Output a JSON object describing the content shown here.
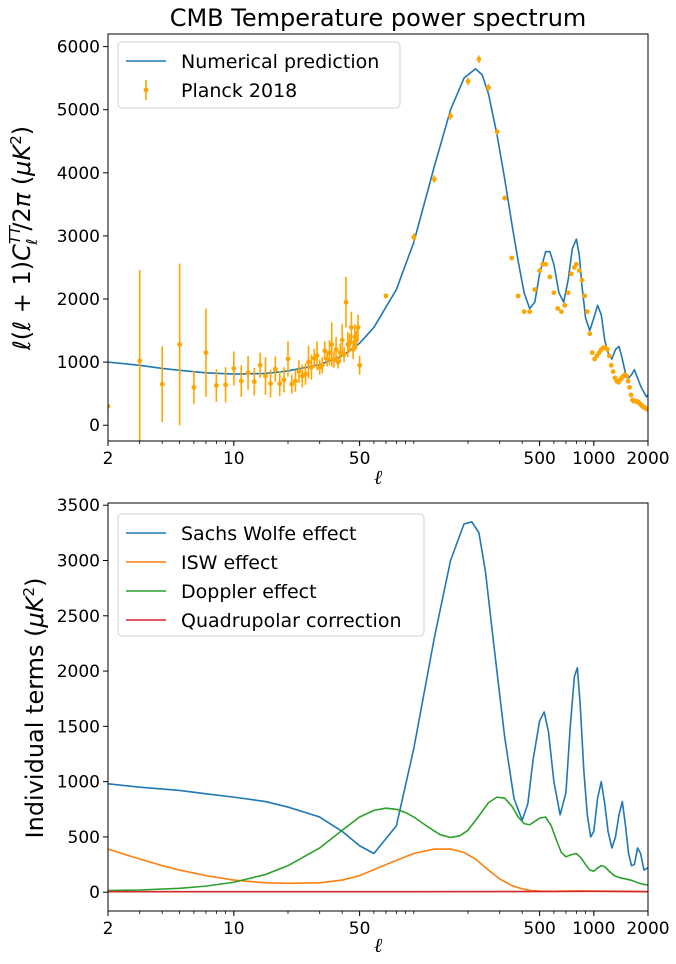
{
  "chart_data": [
    {
      "type": "line",
      "title": "CMB Temperature power spectrum",
      "xlabel": "ℓ",
      "ylabel": "ℓ(ℓ + 1)CℓTT/2π (μK²)",
      "xscale": "log",
      "xlim": [
        2,
        2000
      ],
      "ylim": [
        -250,
        6200
      ],
      "xticks": [
        2,
        10,
        50,
        500,
        1000,
        2000
      ],
      "xtick_labels": [
        "2",
        "10",
        "50",
        "500",
        "1000",
        "2000"
      ],
      "yticks": [
        0,
        1000,
        2000,
        3000,
        4000,
        5000,
        6000
      ],
      "ytick_labels": [
        "0",
        "1000",
        "2000",
        "3000",
        "4000",
        "5000",
        "6000"
      ],
      "legend_position": "top-left",
      "series": [
        {
          "name": "Numerical prediction",
          "kind": "line",
          "color": "#1f77b4",
          "x": [
            2,
            3,
            4,
            5,
            7,
            10,
            15,
            20,
            30,
            40,
            50,
            60,
            80,
            100,
            130,
            160,
            190,
            220,
            240,
            260,
            290,
            320,
            350,
            380,
            410,
            440,
            470,
            500,
            540,
            570,
            600,
            640,
            680,
            720,
            760,
            800,
            830,
            860,
            900,
            950,
            1000,
            1050,
            1100,
            1150,
            1200,
            1260,
            1320,
            1380,
            1440,
            1500,
            1560,
            1620,
            1680,
            1750,
            1820,
            1900,
            1960,
            2000
          ],
          "y": [
            1000,
            950,
            900,
            870,
            830,
            810,
            820,
            860,
            960,
            1100,
            1300,
            1550,
            2150,
            2900,
            4100,
            5000,
            5500,
            5650,
            5550,
            5250,
            4600,
            3900,
            3200,
            2600,
            2100,
            1850,
            1950,
            2400,
            2750,
            2750,
            2550,
            2100,
            1950,
            2300,
            2800,
            2950,
            2700,
            2200,
            1700,
            1500,
            1700,
            1900,
            1750,
            1350,
            1150,
            1050,
            1200,
            1250,
            1050,
            820,
            750,
            800,
            880,
            750,
            620,
            520,
            450,
            480
          ]
        },
        {
          "name": "Planck 2018",
          "kind": "errorbar",
          "color": "#ffa500",
          "x": [
            2,
            3,
            4,
            5,
            6,
            7,
            8,
            9,
            10,
            11,
            12,
            13,
            14,
            15,
            16,
            17,
            18,
            19,
            20,
            21,
            22,
            23,
            24,
            25,
            26,
            27,
            28,
            29,
            30,
            31,
            32,
            33,
            34,
            35,
            36,
            37,
            38,
            39,
            40,
            41,
            42,
            43,
            44,
            45,
            46,
            47,
            48,
            49,
            50,
            70,
            100,
            130,
            160,
            200,
            230,
            260,
            290,
            320,
            350,
            380,
            410,
            440,
            470,
            500,
            520,
            540,
            570,
            600,
            630,
            660,
            690,
            720,
            750,
            780,
            800,
            830,
            860,
            890,
            920,
            950,
            980,
            1010,
            1040,
            1070,
            1100,
            1130,
            1160,
            1190,
            1220,
            1250,
            1280,
            1310,
            1340,
            1370,
            1400,
            1430,
            1460,
            1490,
            1520,
            1550,
            1580,
            1610,
            1640,
            1670,
            1700,
            1730,
            1760,
            1790,
            1820,
            1850,
            1880,
            1910,
            1940,
            1970,
            2000
          ],
          "y": [
            300,
            1020,
            650,
            1280,
            600,
            1150,
            630,
            640,
            900,
            700,
            830,
            690,
            950,
            780,
            660,
            890,
            660,
            720,
            1050,
            650,
            700,
            850,
            780,
            810,
            1000,
            920,
            1060,
            1100,
            920,
            950,
            1180,
            1050,
            1150,
            1280,
            1040,
            1200,
            1000,
            1150,
            1350,
            1120,
            1950,
            1280,
            1300,
            1550,
            1200,
            1400,
            1350,
            1550,
            950,
            2050,
            2980,
            3900,
            4900,
            5450,
            5800,
            5350,
            4650,
            3600,
            2650,
            2050,
            1800,
            1800,
            2150,
            2450,
            2550,
            2550,
            2350,
            2100,
            1850,
            1800,
            1900,
            2100,
            2400,
            2500,
            2550,
            2450,
            2300,
            2050,
            1800,
            1450,
            1150,
            1050,
            1100,
            1150,
            1200,
            1230,
            1230,
            1200,
            1100,
            950,
            850,
            750,
            700,
            680,
            720,
            750,
            780,
            800,
            780,
            700,
            600,
            480,
            400,
            380,
            380,
            380,
            370,
            350,
            330,
            310,
            290,
            280,
            270,
            260,
            250
          ],
          "yerr": [
            25,
            1440,
            600,
            1280,
            260,
            700,
            260,
            280,
            270,
            250,
            270,
            220,
            200,
            300,
            220,
            200,
            200,
            200,
            280,
            150,
            170,
            180,
            180,
            170,
            260,
            200,
            150,
            230,
            120,
            130,
            150,
            120,
            200,
            350,
            130,
            200,
            100,
            150,
            250,
            120,
            400,
            200,
            150,
            250,
            150,
            200,
            150,
            200,
            150,
            40,
            60,
            60,
            60,
            60,
            60,
            60,
            50,
            40,
            30,
            30,
            25,
            25,
            25,
            25,
            25,
            25,
            25,
            25,
            25,
            25,
            25,
            25,
            25,
            25,
            25,
            25,
            20,
            20,
            20,
            20,
            20,
            20,
            20,
            20,
            20,
            20,
            20,
            20,
            20,
            20,
            15,
            15,
            15,
            15,
            15,
            15,
            15,
            15,
            15,
            15,
            15,
            15,
            15,
            15,
            15,
            15,
            15,
            15,
            15,
            15,
            15,
            15,
            15,
            15,
            15
          ]
        }
      ]
    },
    {
      "type": "line",
      "title": "",
      "xlabel": "ℓ",
      "ylabel": "Individual terms (μK²)",
      "xscale": "log",
      "xlim": [
        2,
        2000
      ],
      "ylim": [
        -170,
        3520
      ],
      "xticks": [
        2,
        10,
        50,
        500,
        1000,
        2000
      ],
      "xtick_labels": [
        "2",
        "10",
        "50",
        "500",
        "1000",
        "2000"
      ],
      "yticks": [
        0,
        500,
        1000,
        1500,
        2000,
        2500,
        3000,
        3500
      ],
      "ytick_labels": [
        "0",
        "500",
        "1000",
        "1500",
        "2000",
        "2500",
        "3000",
        "3500"
      ],
      "legend_position": "top-left",
      "series": [
        {
          "name": "Sachs Wolfe effect",
          "color": "#1f77b4",
          "x": [
            2,
            3,
            5,
            7,
            10,
            15,
            20,
            30,
            40,
            50,
            60,
            80,
            100,
            130,
            160,
            190,
            210,
            230,
            250,
            280,
            320,
            360,
            400,
            430,
            460,
            500,
            530,
            560,
            600,
            650,
            700,
            740,
            780,
            810,
            840,
            880,
            920,
            960,
            1000,
            1050,
            1100,
            1150,
            1200,
            1260,
            1320,
            1380,
            1440,
            1500,
            1560,
            1620,
            1680,
            1750,
            1820,
            1900,
            2000
          ],
          "y": [
            980,
            950,
            920,
            890,
            860,
            820,
            770,
            680,
            550,
            420,
            350,
            600,
            1300,
            2300,
            3000,
            3330,
            3350,
            3250,
            2900,
            2200,
            1400,
            850,
            650,
            800,
            1200,
            1550,
            1630,
            1450,
            1000,
            700,
            900,
            1500,
            1950,
            2030,
            1700,
            1100,
            700,
            500,
            550,
            850,
            1000,
            800,
            550,
            400,
            500,
            700,
            820,
            600,
            350,
            240,
            250,
            400,
            350,
            200,
            220
          ]
        },
        {
          "name": "ISW effect",
          "color": "#ff7f0e",
          "x": [
            2,
            3,
            4,
            5,
            7,
            10,
            15,
            20,
            30,
            40,
            50,
            70,
            100,
            130,
            160,
            190,
            220,
            260,
            300,
            350,
            400,
            450,
            500,
            600,
            700,
            800,
            1000,
            1500,
            2000
          ],
          "y": [
            390,
            300,
            240,
            200,
            150,
            110,
            85,
            80,
            85,
            110,
            150,
            250,
            350,
            390,
            390,
            360,
            300,
            200,
            120,
            60,
            30,
            15,
            10,
            8,
            10,
            12,
            10,
            8,
            5
          ]
        },
        {
          "name": "Doppler effect",
          "color": "#2ca02c",
          "x": [
            2,
            3,
            5,
            7,
            10,
            15,
            20,
            30,
            40,
            50,
            60,
            70,
            80,
            90,
            100,
            120,
            140,
            160,
            180,
            200,
            230,
            260,
            290,
            320,
            350,
            380,
            410,
            440,
            470,
            500,
            540,
            580,
            620,
            660,
            700,
            750,
            800,
            850,
            900,
            950,
            1000,
            1050,
            1100,
            1150,
            1200,
            1300,
            1400,
            1500,
            1600,
            1700,
            1800,
            1900,
            2000
          ],
          "y": [
            15,
            20,
            35,
            55,
            90,
            160,
            240,
            400,
            560,
            680,
            740,
            760,
            750,
            720,
            680,
            590,
            520,
            495,
            510,
            560,
            690,
            810,
            860,
            850,
            780,
            680,
            620,
            610,
            640,
            670,
            680,
            600,
            470,
            360,
            320,
            340,
            350,
            310,
            250,
            200,
            190,
            220,
            240,
            230,
            200,
            150,
            130,
            120,
            110,
            95,
            80,
            70,
            65
          ]
        },
        {
          "name": "Quadrupolar correction",
          "color": "#d62728",
          "x": [
            2,
            10,
            50,
            100,
            500,
            1000,
            2000
          ],
          "y": [
            5,
            5,
            5,
            5,
            6,
            8,
            5
          ]
        }
      ]
    }
  ]
}
